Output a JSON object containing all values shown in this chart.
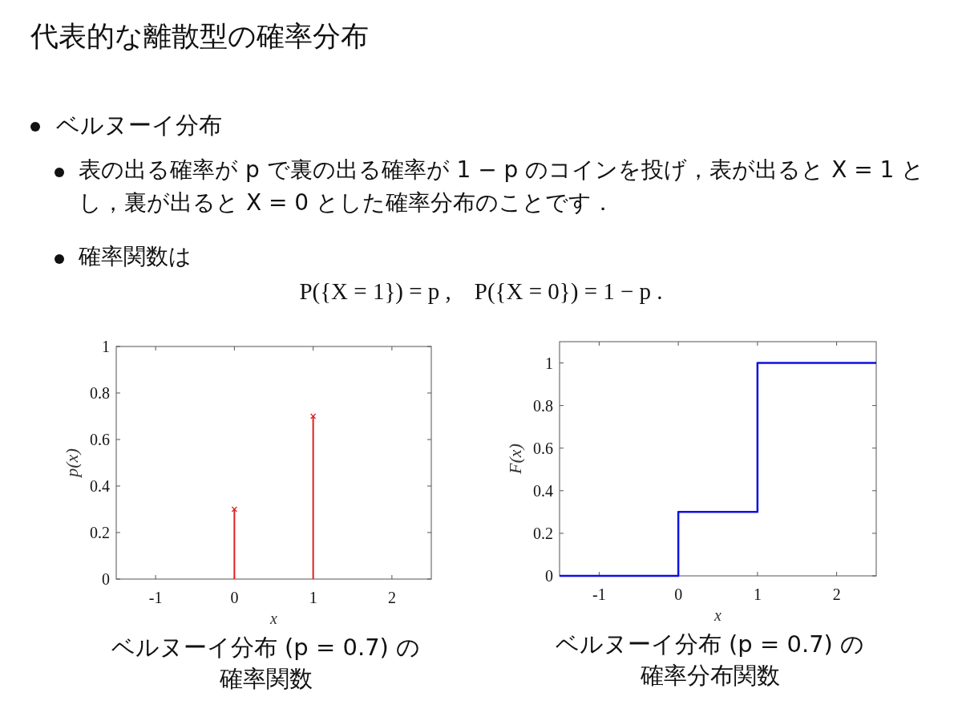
{
  "chart_data": [
    {
      "type": "other",
      "title": "代表的な離散型の確率分布",
      "annotations": [
        "ベルヌーイ分布",
        "表の出る確率が p で裏の出る確率が 1 − p のコインを投げ，表が出ると X = 1 とし，裏が出ると X = 0 とした確率分布のことです．",
        "確率関数は",
        "P({X = 1}) = p ,    P({X = 0}) = 1 − p ."
      ]
    },
    {
      "type": "lollipop",
      "title": "ベルヌーイ分布 (p = 0.7) の確率関数",
      "xlabel": "x",
      "ylabel": "p(x)",
      "x": [
        0,
        1
      ],
      "values": [
        0.3,
        0.7
      ],
      "color": "#e02020",
      "marker": "cross",
      "xlim": [
        -1.5,
        2.5
      ],
      "xticks": [
        {
          "value": -1,
          "label": "-1"
        },
        0,
        1,
        2
      ],
      "ylim": [
        0,
        1
      ],
      "yticks": [
        0,
        0.2,
        0.4,
        0.6,
        0.8,
        1
      ],
      "grid": false
    },
    {
      "type": "step",
      "title": "ベルヌーイ分布 (p = 0.7) の確率分布関数",
      "xlabel": "x",
      "ylabel": "F(x)",
      "x": [
        -1.5,
        0,
        1,
        2.5
      ],
      "values": [
        0,
        0.3,
        1,
        1
      ],
      "color": "#1010e0",
      "marker": "none",
      "xlim": [
        -1.5,
        2.5
      ],
      "xticks": [
        {
          "value": -1,
          "label": "-1"
        },
        0,
        1,
        2
      ],
      "ylim": [
        0,
        1.1
      ],
      "yticks": [
        0,
        0.2,
        0.4,
        0.6,
        0.8,
        1
      ],
      "grid": false
    }
  ]
}
